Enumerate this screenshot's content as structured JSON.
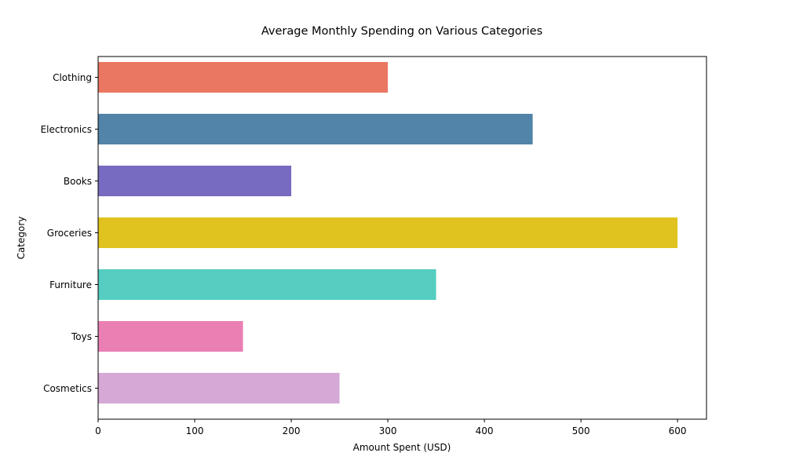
{
  "chart_data": {
    "type": "bar",
    "orientation": "horizontal",
    "title": "Average Monthly Spending on Various Categories",
    "xlabel": "Amount Spent (USD)",
    "ylabel": "Category",
    "categories": [
      "Clothing",
      "Electronics",
      "Books",
      "Groceries",
      "Furniture",
      "Toys",
      "Cosmetics"
    ],
    "values": [
      300,
      450,
      200,
      600,
      350,
      150,
      250
    ],
    "colors": [
      "#e97762",
      "#5283a8",
      "#776bc1",
      "#e0c31f",
      "#55cdc0",
      "#ea7fb4",
      "#d5a8d6"
    ],
    "xlim": [
      0,
      630
    ],
    "xticks": [
      0,
      100,
      200,
      300,
      400,
      500,
      600
    ],
    "grid": false,
    "legend": "none"
  }
}
